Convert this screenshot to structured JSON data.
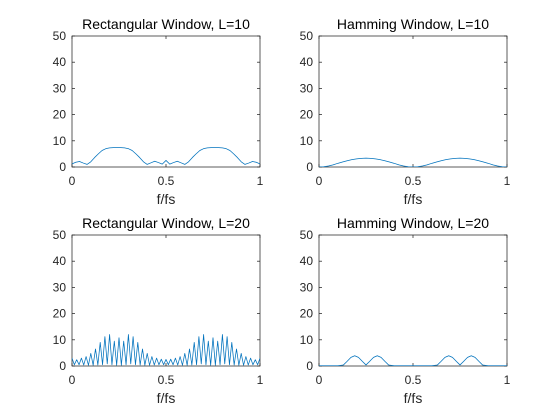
{
  "figure": {
    "background": "#ffffff",
    "line_color": "#0072bd",
    "axis_color": "#262626"
  },
  "chart_data": [
    {
      "type": "line",
      "title": "Rectangular Window, L=10",
      "xlabel": "f/fs",
      "ylabel": "",
      "xlim": [
        0,
        1
      ],
      "ylim": [
        0,
        50
      ],
      "xticks": [
        0,
        0.5,
        1
      ],
      "xtick_labels": [
        "0",
        "0.5",
        "1"
      ],
      "yticks": [
        0,
        10,
        20,
        30,
        40,
        50
      ],
      "ytick_labels": [
        "0",
        "10",
        "20",
        "30",
        "40",
        "50"
      ],
      "grid": false,
      "series": [
        {
          "x": [
            0,
            0.02,
            0.04,
            0.06,
            0.08,
            0.1,
            0.12,
            0.14,
            0.16,
            0.18,
            0.2,
            0.22,
            0.24,
            0.26,
            0.28,
            0.3,
            0.32,
            0.34,
            0.36,
            0.38,
            0.4,
            0.42,
            0.44,
            0.46,
            0.48,
            0.5,
            0.52,
            0.54,
            0.56,
            0.58,
            0.6,
            0.62,
            0.64,
            0.66,
            0.68,
            0.7,
            0.72,
            0.74,
            0.76,
            0.78,
            0.8,
            0.82,
            0.84,
            0.86,
            0.88,
            0.9,
            0.92,
            0.94,
            0.96,
            0.98,
            1
          ],
          "y": [
            1.2,
            1.8,
            2.1,
            1.5,
            1.0,
            2.0,
            3.6,
            5.0,
            6.3,
            7.0,
            7.3,
            7.4,
            7.4,
            7.4,
            7.3,
            7.0,
            6.3,
            5.0,
            3.6,
            2.0,
            1.0,
            1.6,
            2.2,
            1.7,
            1.1,
            2.5,
            1.1,
            1.7,
            2.2,
            1.6,
            1.0,
            2.0,
            3.6,
            5.0,
            6.3,
            7.0,
            7.3,
            7.4,
            7.4,
            7.4,
            7.3,
            7.0,
            6.3,
            5.0,
            3.6,
            2.0,
            1.0,
            1.5,
            2.1,
            1.8,
            1.2
          ]
        }
      ]
    },
    {
      "type": "line",
      "title": "Hamming Window, L=10",
      "xlabel": "f/fs",
      "ylabel": "",
      "xlim": [
        0,
        1
      ],
      "ylim": [
        0,
        50
      ],
      "xticks": [
        0,
        0.5,
        1
      ],
      "xtick_labels": [
        "0",
        "0.5",
        "1"
      ],
      "yticks": [
        0,
        10,
        20,
        30,
        40,
        50
      ],
      "ytick_labels": [
        "0",
        "10",
        "20",
        "30",
        "40",
        "50"
      ],
      "grid": false,
      "series": [
        {
          "x": [
            0,
            0.025,
            0.05,
            0.075,
            0.1,
            0.125,
            0.15,
            0.175,
            0.2,
            0.225,
            0.25,
            0.275,
            0.3,
            0.325,
            0.35,
            0.375,
            0.4,
            0.425,
            0.45,
            0.475,
            0.5,
            0.525,
            0.55,
            0.575,
            0.6,
            0.625,
            0.65,
            0.675,
            0.7,
            0.725,
            0.75,
            0.775,
            0.8,
            0.825,
            0.85,
            0.875,
            0.9,
            0.925,
            0.95,
            0.975,
            1
          ],
          "y": [
            0.0,
            0.1,
            0.4,
            0.8,
            1.4,
            1.9,
            2.4,
            2.8,
            3.1,
            3.3,
            3.4,
            3.3,
            3.1,
            2.8,
            2.4,
            1.9,
            1.4,
            0.8,
            0.4,
            0.1,
            0.0,
            0.1,
            0.4,
            0.8,
            1.4,
            1.9,
            2.4,
            2.8,
            3.1,
            3.3,
            3.4,
            3.3,
            3.1,
            2.8,
            2.4,
            1.9,
            1.4,
            0.8,
            0.4,
            0.1,
            0.0
          ]
        }
      ]
    },
    {
      "type": "line",
      "title": "Rectangular Window, L=20",
      "xlabel": "f/fs",
      "ylabel": "",
      "xlim": [
        0,
        1
      ],
      "ylim": [
        0,
        50
      ],
      "xticks": [
        0,
        0.5,
        1
      ],
      "xtick_labels": [
        "0",
        "0.5",
        "1"
      ],
      "yticks": [
        0,
        10,
        20,
        30,
        40,
        50
      ],
      "ytick_labels": [
        "0",
        "10",
        "20",
        "30",
        "40",
        "50"
      ],
      "grid": false,
      "series": [
        {
          "x": [
            0,
            0.0125,
            0.025,
            0.0375,
            0.05,
            0.0625,
            0.075,
            0.0875,
            0.1,
            0.1125,
            0.125,
            0.1375,
            0.15,
            0.1625,
            0.175,
            0.1875,
            0.2,
            0.2125,
            0.225,
            0.2375,
            0.25,
            0.2625,
            0.275,
            0.2875,
            0.3,
            0.3125,
            0.325,
            0.3375,
            0.35,
            0.3625,
            0.375,
            0.3875,
            0.4,
            0.4125,
            0.425,
            0.4375,
            0.45,
            0.4625,
            0.475,
            0.4875,
            0.5,
            0.5125,
            0.525,
            0.5375,
            0.55,
            0.5625,
            0.575,
            0.5875,
            0.6,
            0.6125,
            0.625,
            0.6375,
            0.65,
            0.6625,
            0.675,
            0.6875,
            0.7,
            0.7125,
            0.725,
            0.7375,
            0.75,
            0.7625,
            0.775,
            0.7875,
            0.8,
            0.8125,
            0.825,
            0.8375,
            0.85,
            0.8625,
            0.875,
            0.8875,
            0.9,
            0.9125,
            0.925,
            0.9375,
            0.95,
            0.9625,
            0.975,
            0.9875,
            1
          ],
          "y": [
            3.0,
            0.5,
            2.4,
            0.5,
            3.0,
            0.4,
            3.6,
            0.3,
            4.8,
            0.3,
            6.5,
            0.4,
            9.0,
            0.5,
            11.2,
            0.8,
            12.0,
            0.5,
            9.5,
            0.3,
            10.8,
            0.3,
            9.5,
            0.5,
            12.0,
            0.8,
            11.2,
            0.5,
            9.0,
            0.4,
            6.5,
            0.3,
            4.8,
            0.3,
            3.6,
            0.4,
            3.0,
            0.5,
            2.6,
            0.5,
            2.5,
            0.5,
            2.6,
            0.5,
            3.0,
            0.4,
            3.6,
            0.3,
            4.8,
            0.3,
            6.5,
            0.4,
            9.0,
            0.5,
            11.2,
            0.8,
            12.0,
            0.5,
            9.5,
            0.3,
            10.8,
            0.3,
            9.5,
            0.5,
            12.0,
            0.8,
            11.2,
            0.5,
            9.0,
            0.4,
            6.5,
            0.3,
            4.8,
            0.3,
            3.6,
            0.4,
            3.0,
            0.5,
            2.4,
            0.5,
            3.0
          ]
        }
      ]
    },
    {
      "type": "line",
      "title": "Hamming Window, L=20",
      "xlabel": "f/fs",
      "ylabel": "",
      "xlim": [
        0,
        1
      ],
      "ylim": [
        0,
        50
      ],
      "xticks": [
        0,
        0.5,
        1
      ],
      "xtick_labels": [
        "0",
        "0.5",
        "1"
      ],
      "yticks": [
        0,
        10,
        20,
        30,
        40,
        50
      ],
      "ytick_labels": [
        "0",
        "10",
        "20",
        "30",
        "40",
        "50"
      ],
      "grid": false,
      "series": [
        {
          "x": [
            0,
            0.05,
            0.1,
            0.13,
            0.15,
            0.17,
            0.19,
            0.21,
            0.23,
            0.25,
            0.27,
            0.29,
            0.31,
            0.33,
            0.35,
            0.37,
            0.4,
            0.45,
            0.5,
            0.55,
            0.6,
            0.63,
            0.65,
            0.67,
            0.69,
            0.71,
            0.73,
            0.75,
            0.77,
            0.79,
            0.81,
            0.83,
            0.85,
            0.87,
            0.9,
            0.95,
            1
          ],
          "y": [
            0.1,
            0.1,
            0.1,
            0.4,
            1.8,
            3.3,
            3.9,
            3.3,
            1.8,
            0.4,
            1.8,
            3.3,
            3.9,
            3.3,
            1.8,
            0.4,
            0.1,
            0.1,
            0.1,
            0.1,
            0.1,
            0.4,
            1.8,
            3.3,
            3.9,
            3.3,
            1.8,
            0.4,
            1.8,
            3.3,
            3.9,
            3.3,
            1.8,
            0.4,
            0.1,
            0.1,
            0.1
          ]
        }
      ]
    }
  ]
}
